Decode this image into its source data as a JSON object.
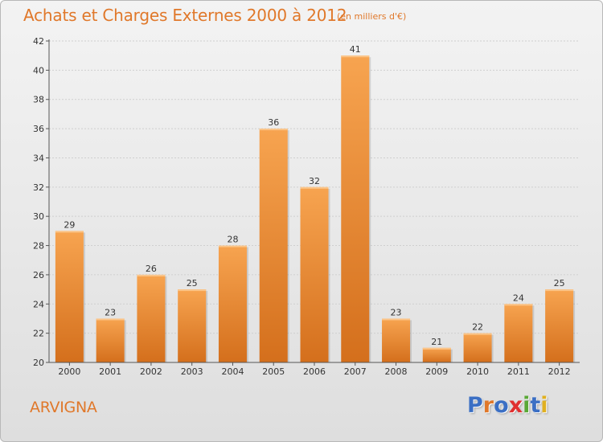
{
  "header": {
    "title": "Achats et Charges Externes 2000 à 2012",
    "unit": "(en milliers d'€)"
  },
  "footer": {
    "town": "ARVIGNA",
    "logo_text": "Proxiti",
    "logo_colors": [
      "#3b6fc4",
      "#e0782a",
      "#3b6fc4",
      "#e03030",
      "#5aa836",
      "#3b6fc4",
      "#e0b020"
    ]
  },
  "colors": {
    "bar_top": "#f7a450",
    "bar_bottom": "#d46f1c",
    "text": "#e0782a",
    "axis": "#555555",
    "grid": "#cfcfcf"
  },
  "chart_data": {
    "type": "bar",
    "categories": [
      "2000",
      "2001",
      "2002",
      "2003",
      "2004",
      "2005",
      "2006",
      "2007",
      "2008",
      "2009",
      "2010",
      "2011",
      "2012"
    ],
    "values": [
      29,
      23,
      26,
      25,
      28,
      36,
      32,
      41,
      23,
      21,
      22,
      24,
      25
    ],
    "ylim": [
      20,
      42
    ],
    "yticks": [
      20,
      22,
      24,
      26,
      28,
      30,
      32,
      34,
      36,
      38,
      40,
      42
    ],
    "grid": true,
    "data_labels": true
  }
}
